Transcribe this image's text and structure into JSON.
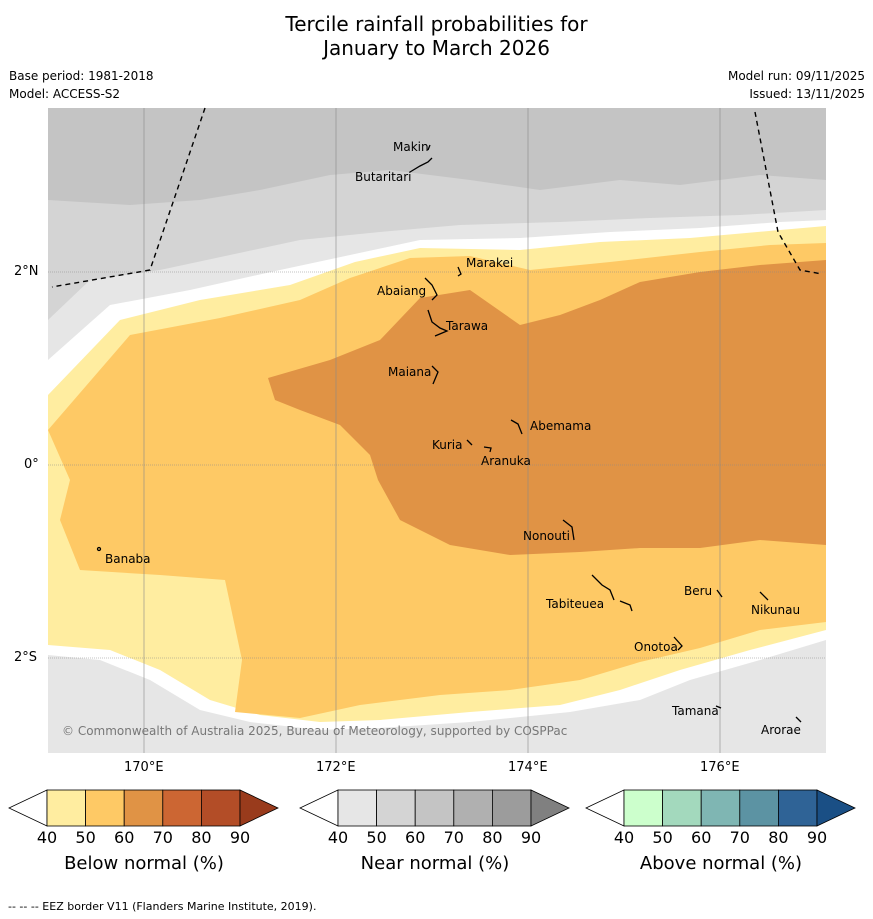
{
  "title_line1": "Tercile rainfall probabilities for",
  "title_line2": "January to March 2026",
  "base_period": "Base period: 1981-2018",
  "model": "Model: ACCESS-S2",
  "model_run": "Model run: 09/11/2025",
  "issued": "Issued: 13/11/2025",
  "copyright": "© Commonwealth of Australia 2025, Bureau of Meteorology, supported by COSPPac",
  "footnote": "--  --  -- EEZ border V11 (Flanders Marine Institute, 2019).",
  "lon_labels": [
    "170°E",
    "172°E",
    "174°E",
    "176°E"
  ],
  "lat_labels": [
    "2°N",
    "0°",
    "2°S"
  ],
  "islands": [
    "Makin",
    "Butaritari",
    "Marakei",
    "Abaiang",
    "Tarawa",
    "Maiana",
    "Abemama",
    "Kuria",
    "Aranuka",
    "Nonouti",
    "Banaba",
    "Tabiteuea",
    "Beru",
    "Nikunau",
    "Onotoa",
    "Tamana",
    "Arorae"
  ],
  "colorbars": [
    {
      "label": "Below normal (%)",
      "ticks": [
        "40",
        "50",
        "60",
        "70",
        "80",
        "90"
      ],
      "colors": [
        "#ffffff",
        "#ffeda0",
        "#fec965",
        "#e09345",
        "#cc6633",
        "#b34d27",
        "#993b1c"
      ]
    },
    {
      "label": "Near normal (%)",
      "ticks": [
        "40",
        "50",
        "60",
        "70",
        "80",
        "90"
      ],
      "colors": [
        "#ffffff",
        "#e6e6e6",
        "#d4d4d4",
        "#c4c4c4",
        "#b0b0b0",
        "#9c9c9c",
        "#808080"
      ]
    },
    {
      "label": "Above normal (%)",
      "ticks": [
        "40",
        "50",
        "60",
        "70",
        "80",
        "90"
      ],
      "colors": [
        "#ffffff",
        "#ccffcc",
        "#a3d9bd",
        "#7fb6b3",
        "#5c93a3",
        "#2f6396",
        "#1a4f85"
      ]
    }
  ],
  "map_colors": {
    "below_50": "#ffeda0",
    "below_60": "#fec965",
    "below_70": "#e09345",
    "near_50": "#e6e6e6",
    "near_60": "#d4d4d4",
    "near_70": "#c4c4c4",
    "white": "#ffffff"
  }
}
